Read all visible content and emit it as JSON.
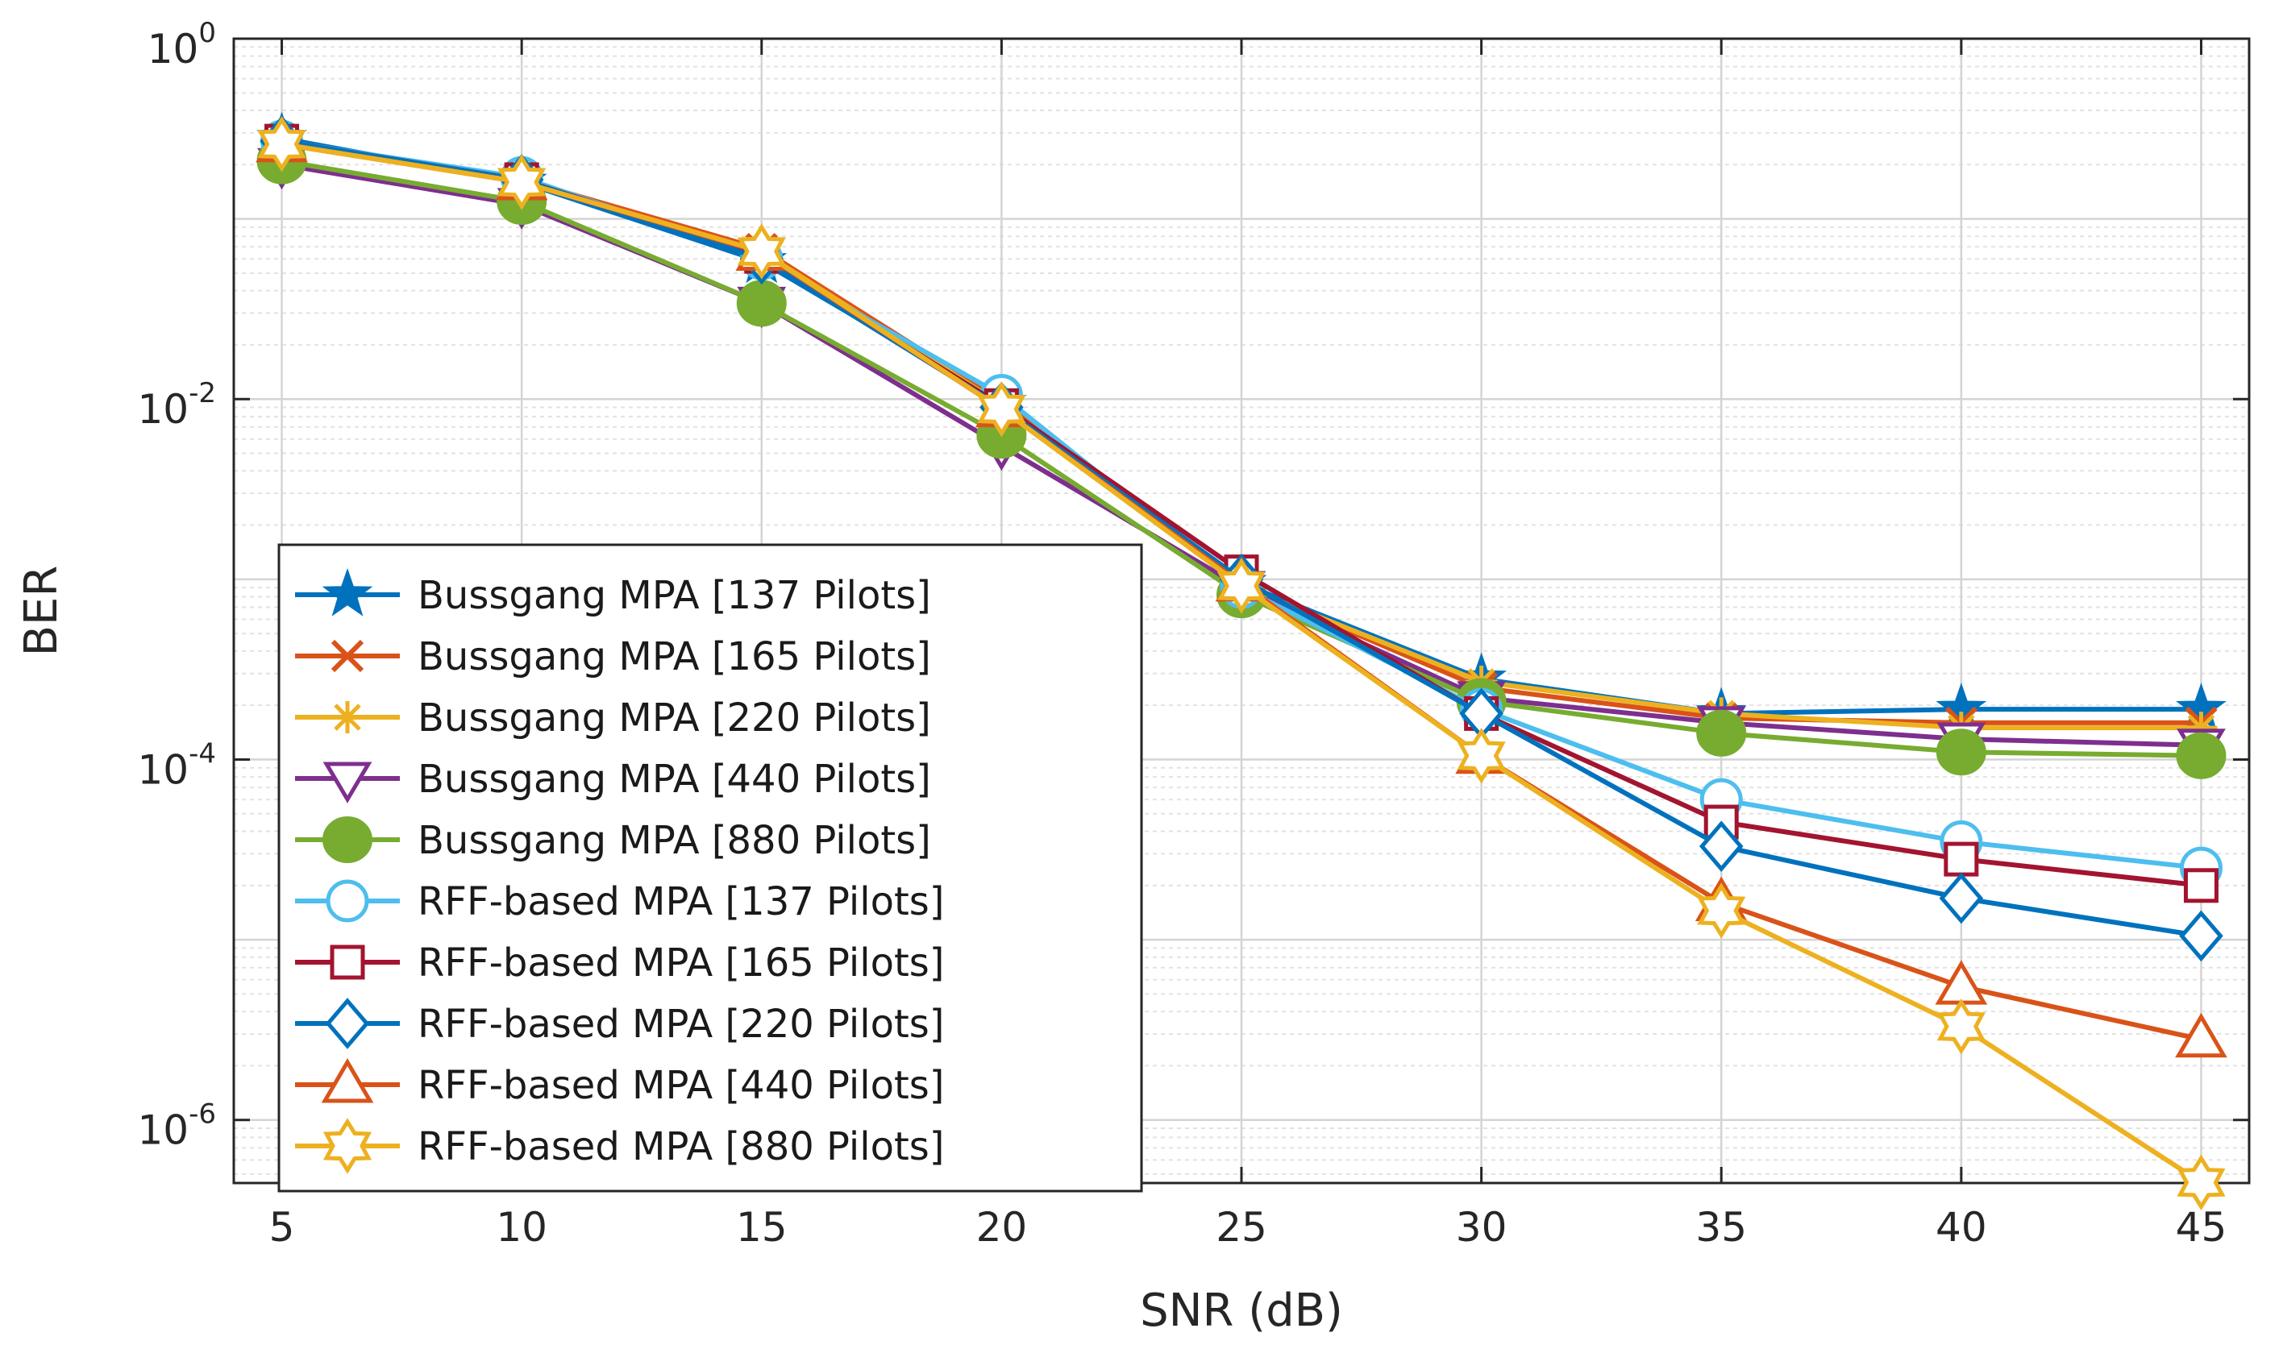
{
  "chart_data": {
    "type": "line",
    "title": "",
    "xlabel": "SNR (dB)",
    "ylabel": "BER",
    "yscale": "log",
    "xlim": [
      4,
      46
    ],
    "ylim_exp": [
      -6.35,
      0
    ],
    "x_ticks": [
      5,
      10,
      15,
      20,
      25,
      30,
      35,
      40,
      45
    ],
    "x_tick_labels": [
      "5",
      "10",
      "15",
      "20",
      "25",
      "30",
      "35",
      "40",
      "45"
    ],
    "y_ticks": [
      0,
      -2,
      -4,
      -6
    ],
    "y_tick_labels": [
      {
        "base": "10",
        "exp": "0"
      },
      {
        "base": "10",
        "exp": "-2"
      },
      {
        "base": "10",
        "exp": "-4"
      },
      {
        "base": "10",
        "exp": "-6"
      }
    ],
    "grid": true,
    "legend_position": "lower-left",
    "x": [
      5,
      10,
      15,
      20,
      25,
      30,
      35,
      40,
      45
    ],
    "series": [
      {
        "name": "Bussgang MPA [137 Pilots]",
        "color": "#0072BD",
        "marker": "star",
        "values": [
          0.28,
          0.16,
          0.058,
          0.0095,
          0.00095,
          0.00028,
          0.00018,
          0.00019,
          0.00019
        ]
      },
      {
        "name": "Bussgang MPA [165 Pilots]",
        "color": "#D95319",
        "marker": "x",
        "values": [
          0.27,
          0.165,
          0.068,
          0.0098,
          0.00093,
          0.00025,
          0.00017,
          0.00016,
          0.00016
        ]
      },
      {
        "name": "Bussgang MPA [220 Pilots]",
        "color": "#EDB120",
        "marker": "asterisk",
        "values": [
          0.26,
          0.16,
          0.066,
          0.0093,
          0.00092,
          0.00027,
          0.00018,
          0.00015,
          0.00015
        ]
      },
      {
        "name": "Bussgang MPA [440 Pilots]",
        "color": "#7E2F8E",
        "marker": "triangle-down",
        "values": [
          0.2,
          0.12,
          0.034,
          0.0055,
          0.0009,
          0.00022,
          0.00016,
          0.00013,
          0.00012
        ]
      },
      {
        "name": "Bussgang MPA [880 Pilots]",
        "color": "#77AC30",
        "marker": "filled-circle",
        "values": [
          0.21,
          0.125,
          0.034,
          0.0063,
          0.00082,
          0.00021,
          0.00014,
          0.00011,
          0.000105
        ]
      },
      {
        "name": "RFF-based MPA [137 Pilots]",
        "color": "#4DBEEE",
        "marker": "circle",
        "values": [
          0.27,
          0.17,
          0.06,
          0.0105,
          0.0009,
          0.00019,
          6e-05,
          3.5e-05,
          2.5e-05
        ]
      },
      {
        "name": "RFF-based MPA [165 Pilots]",
        "color": "#A2142F",
        "marker": "square",
        "values": [
          0.27,
          0.165,
          0.062,
          0.0092,
          0.0011,
          0.00018,
          4.5e-05,
          2.8e-05,
          2e-05
        ]
      },
      {
        "name": "RFF-based MPA [220 Pilots]",
        "color": "#0072BD",
        "marker": "diamond",
        "values": [
          0.27,
          0.165,
          0.06,
          0.009,
          0.001,
          0.00018,
          3.3e-05,
          1.7e-05,
          1.05e-05
        ]
      },
      {
        "name": "RFF-based MPA [440 Pilots]",
        "color": "#D95319",
        "marker": "triangle-up",
        "values": [
          0.26,
          0.16,
          0.065,
          0.0088,
          0.00095,
          0.000105,
          1.6e-05,
          5.5e-06,
          2.8e-06
        ]
      },
      {
        "name": "RFF-based MPA [880 Pilots]",
        "color": "#EDB120",
        "marker": "hexagram",
        "values": [
          0.26,
          0.16,
          0.066,
          0.0088,
          0.00092,
          0.000105,
          1.45e-05,
          3.3e-06,
          4.5e-07
        ]
      }
    ]
  }
}
